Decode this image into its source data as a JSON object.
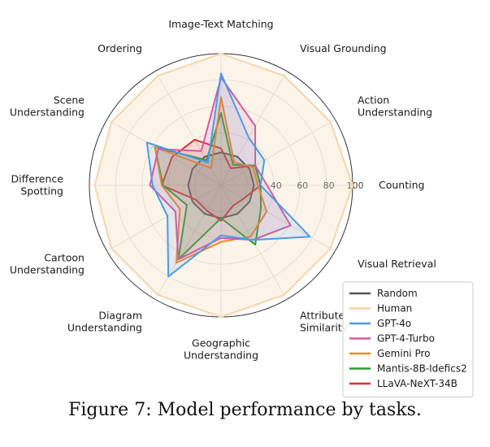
{
  "caption": "Figure 7: Model performance by tasks.",
  "chart_data": {
    "type": "radar",
    "title": "",
    "categories": [
      "Image-Text Matching",
      "Visual Grounding",
      "Action Understanding",
      "Counting",
      "Visual Retrieval",
      "Attribute Similarity",
      "Geographic Understanding",
      "Diagram Understanding",
      "Cartoon Understanding",
      "Difference Spotting",
      "Scene Understanding",
      "Ordering"
    ],
    "rlim": [
      0,
      100
    ],
    "rticks": [
      40,
      60,
      80,
      100
    ],
    "grid": true,
    "legend_position": "bottom-right",
    "series": [
      {
        "name": "Random",
        "color": "#555555",
        "values": [
          25,
          25,
          25,
          25,
          25,
          25,
          25,
          25,
          25,
          25,
          25,
          25
        ]
      },
      {
        "name": "Human",
        "color": "#f6d7b0",
        "values": [
          100,
          96,
          96,
          100,
          96,
          96,
          100,
          96,
          96,
          96,
          96,
          96
        ]
      },
      {
        "name": "GPT-4o",
        "color": "#4c9be8",
        "values": [
          85,
          42,
          38,
          30,
          78,
          48,
          38,
          80,
          47,
          52,
          65,
          20
        ]
      },
      {
        "name": "GPT-4-Turbo",
        "color": "#d45aa0",
        "values": [
          82,
          52,
          30,
          35,
          61,
          48,
          40,
          65,
          40,
          54,
          55,
          30
        ]
      },
      {
        "name": "Gemini Pro",
        "color": "#ef8a1f",
        "values": [
          67,
          20,
          28,
          28,
          40,
          45,
          43,
          68,
          36,
          45,
          58,
          15
        ]
      },
      {
        "name": "Mantis-8B-Idefics2",
        "color": "#2a9d2a",
        "values": [
          55,
          18,
          30,
          30,
          35,
          52,
          25,
          65,
          30,
          44,
          58,
          22
        ]
      },
      {
        "name": "LLaVA-NeXT-34B",
        "color": "#dc2f3a",
        "values": [
          28,
          15,
          30,
          30,
          20,
          18,
          27,
          22,
          22,
          45,
          43,
          40
        ]
      }
    ]
  }
}
